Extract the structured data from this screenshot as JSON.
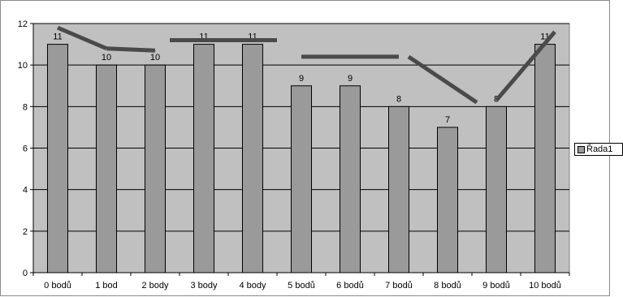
{
  "colors": {
    "plot_background": "#c0c0c0",
    "bar_fill": "#9a9a9a",
    "bar_stroke": "#000000",
    "line": "#4a4a4a",
    "gridline": "#000000"
  },
  "legend": {
    "label": "Řada1"
  },
  "chart_data": {
    "type": "bar",
    "categories": [
      "0 bodů",
      "1 bod",
      "2 body",
      "3 body",
      "4 body",
      "5 bodů",
      "6 bodů",
      "7 bodů",
      "8 bodů",
      "9 bodů",
      "10 bodů"
    ],
    "series": [
      {
        "name": "Řada1",
        "values": [
          11,
          10,
          10,
          11,
          11,
          9,
          9,
          8,
          7,
          8,
          11
        ],
        "data_labels": [
          "11",
          "10",
          "10",
          "11",
          "11",
          "9",
          "9",
          "8",
          "7",
          "8",
          "11"
        ]
      }
    ],
    "overlay_lines": [
      {
        "points": [
          [
            0,
            11.8
          ],
          [
            1,
            10.8
          ]
        ]
      },
      {
        "points": [
          [
            1,
            10.8
          ],
          [
            2,
            10.7
          ]
        ]
      },
      {
        "points": [
          [
            2.3,
            11.2
          ],
          [
            4.5,
            11.2
          ]
        ]
      },
      {
        "points": [
          [
            5,
            10.4
          ],
          [
            7,
            10.4
          ]
        ]
      },
      {
        "points": [
          [
            7.2,
            10.4
          ],
          [
            8.6,
            8.2
          ]
        ]
      },
      {
        "points": [
          [
            9,
            8.3
          ],
          [
            10.2,
            11.6
          ]
        ]
      }
    ],
    "y_ticks": [
      "0",
      "2",
      "4",
      "6",
      "8",
      "10",
      "12"
    ],
    "ylim": [
      0,
      12
    ],
    "grid": true,
    "legend_position": "right"
  }
}
